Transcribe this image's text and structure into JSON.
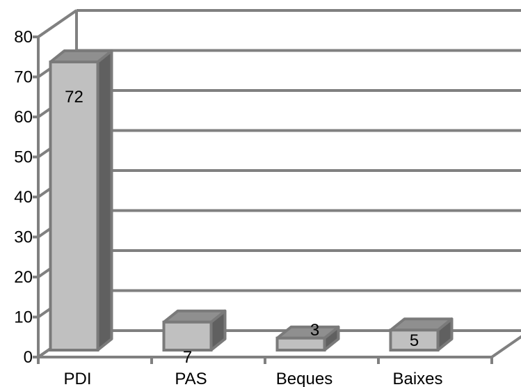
{
  "chart_data": {
    "type": "bar",
    "categories": [
      "PDI",
      "PAS",
      "Beques",
      "Baixes"
    ],
    "values": [
      72,
      7,
      3,
      5
    ],
    "title": "",
    "xlabel": "",
    "ylabel": "",
    "ylim": [
      0,
      80
    ],
    "yticks": [
      "0",
      "10",
      "20",
      "30",
      "40",
      "50",
      "60",
      "70",
      "80"
    ],
    "data_labels": [
      "72",
      "7",
      "3",
      "5"
    ],
    "grid": true,
    "legend": "none",
    "colors": {
      "bar_front": "#c0c0c0",
      "bar_top": "#8f8f8f",
      "bar_side": "#606060",
      "bar_edge": "#7a7a7a",
      "grid": "#808080"
    }
  }
}
